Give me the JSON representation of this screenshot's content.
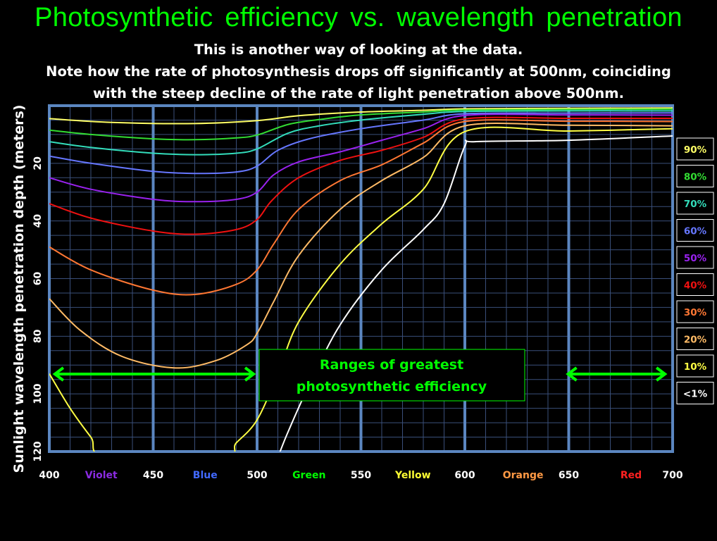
{
  "header": {
    "title": "Photosynthetic efficiency vs. wavelength penetration",
    "subtitle_lines": [
      "This is another way of looking at the data.",
      "Note how the rate of photosynthesis drops off significantly at 500nm, coinciding",
      "with the steep decline of the rate of light penetration above 500nm."
    ]
  },
  "colors": {
    "title": "#00ff00",
    "grid_minor": "#3a4f7a",
    "grid_major": "#5b86c0",
    "arrow": "#00ff00"
  },
  "chart_data": {
    "type": "line",
    "title": "Photosynthetic efficiency vs. wavelength penetration",
    "xlabel": "",
    "ylabel": "Sunlight wavelength penetration depth (meters)",
    "xlim": [
      400,
      700
    ],
    "ylim": [
      120,
      0
    ],
    "y_inverted": true,
    "x_ticks": [
      400,
      450,
      500,
      550,
      600,
      650,
      700
    ],
    "y_ticks": [
      20,
      40,
      60,
      80,
      100,
      120
    ],
    "grid": true,
    "color_bands": [
      {
        "name": "Violet",
        "x": 425,
        "color": "#8a2be2"
      },
      {
        "name": "Blue",
        "x": 475,
        "color": "#4169ff"
      },
      {
        "name": "Green",
        "x": 525,
        "color": "#00ff00"
      },
      {
        "name": "Yellow",
        "x": 575,
        "color": "#ffff33"
      },
      {
        "name": "Orange",
        "x": 628,
        "color": "#ff9944"
      },
      {
        "name": "Red",
        "x": 680,
        "color": "#ff2020"
      }
    ],
    "legend_position": "right",
    "series": [
      {
        "name": "90%",
        "color": "#ffff66",
        "points": [
          [
            400,
            4.5
          ],
          [
            430,
            5.8
          ],
          [
            470,
            6.2
          ],
          [
            500,
            5.2
          ],
          [
            520,
            3.5
          ],
          [
            550,
            2.2
          ],
          [
            580,
            1.6
          ],
          [
            600,
            1.1
          ],
          [
            650,
            0.9
          ],
          [
            700,
            0.8
          ]
        ]
      },
      {
        "name": "80%",
        "color": "#33dd33",
        "points": [
          [
            400,
            8.5
          ],
          [
            420,
            10
          ],
          [
            450,
            11.5
          ],
          [
            470,
            11.8
          ],
          [
            490,
            11.2
          ],
          [
            500,
            10.2
          ],
          [
            515,
            6.5
          ],
          [
            530,
            4.8
          ],
          [
            550,
            3.2
          ],
          [
            580,
            2.2
          ],
          [
            600,
            1.5
          ],
          [
            650,
            1.3
          ],
          [
            700,
            1.2
          ]
        ]
      },
      {
        "name": "70%",
        "color": "#33ddbb",
        "points": [
          [
            400,
            12.5
          ],
          [
            420,
            14.5
          ],
          [
            450,
            16.5
          ],
          [
            470,
            17
          ],
          [
            490,
            16.5
          ],
          [
            500,
            15
          ],
          [
            515,
            9.5
          ],
          [
            530,
            7
          ],
          [
            550,
            5
          ],
          [
            580,
            3
          ],
          [
            600,
            2
          ],
          [
            650,
            1.8
          ],
          [
            700,
            1.8
          ]
        ]
      },
      {
        "name": "60%",
        "color": "#6677ff",
        "points": [
          [
            400,
            17.5
          ],
          [
            420,
            20
          ],
          [
            450,
            22.8
          ],
          [
            470,
            23.5
          ],
          [
            490,
            23
          ],
          [
            500,
            21
          ],
          [
            510,
            15.5
          ],
          [
            525,
            11.5
          ],
          [
            550,
            8
          ],
          [
            580,
            5
          ],
          [
            600,
            2.8
          ],
          [
            650,
            2.6
          ],
          [
            700,
            2.5
          ]
        ]
      },
      {
        "name": "50%",
        "color": "#9922ee",
        "points": [
          [
            400,
            25
          ],
          [
            420,
            29
          ],
          [
            450,
            32.5
          ],
          [
            470,
            33.3
          ],
          [
            490,
            32.5
          ],
          [
            500,
            30
          ],
          [
            508,
            24
          ],
          [
            520,
            19.5
          ],
          [
            540,
            16
          ],
          [
            560,
            12
          ],
          [
            580,
            8
          ],
          [
            600,
            3.4
          ],
          [
            650,
            3.2
          ],
          [
            700,
            3.3
          ]
        ]
      },
      {
        "name": "40%",
        "color": "#ee1111",
        "points": [
          [
            400,
            34
          ],
          [
            420,
            39
          ],
          [
            450,
            43.5
          ],
          [
            470,
            44.6
          ],
          [
            490,
            43
          ],
          [
            500,
            39.5
          ],
          [
            507,
            33
          ],
          [
            520,
            25
          ],
          [
            540,
            19
          ],
          [
            560,
            15.5
          ],
          [
            580,
            11
          ],
          [
            600,
            4.6
          ],
          [
            650,
            4.4
          ],
          [
            700,
            4.4
          ]
        ]
      },
      {
        "name": "30%",
        "color": "#ff7733",
        "points": [
          [
            400,
            49
          ],
          [
            420,
            57
          ],
          [
            450,
            64
          ],
          [
            470,
            65.5
          ],
          [
            490,
            62
          ],
          [
            500,
            57
          ],
          [
            508,
            48
          ],
          [
            520,
            36
          ],
          [
            540,
            26
          ],
          [
            560,
            20.5
          ],
          [
            580,
            13
          ],
          [
            600,
            5.5
          ],
          [
            650,
            5.4
          ],
          [
            700,
            5.5
          ]
        ]
      },
      {
        "name": "20%",
        "color": "#ffbb66",
        "points": [
          [
            400,
            67
          ],
          [
            415,
            78
          ],
          [
            435,
            87
          ],
          [
            460,
            91
          ],
          [
            480,
            88.5
          ],
          [
            495,
            83
          ],
          [
            500,
            79
          ],
          [
            508,
            68
          ],
          [
            520,
            52
          ],
          [
            540,
            36
          ],
          [
            560,
            26
          ],
          [
            580,
            18
          ],
          [
            600,
            7
          ],
          [
            650,
            6.8
          ],
          [
            700,
            7
          ]
        ]
      },
      {
        "name": "10%",
        "color": "#ffff44",
        "points": [
          [
            400,
            93
          ],
          [
            410,
            105
          ],
          [
            420,
            115
          ],
          [
            428,
            122
          ],
          [
            483,
            122
          ],
          [
            490,
            117
          ],
          [
            500,
            109
          ],
          [
            510,
            93
          ],
          [
            520,
            75
          ],
          [
            540,
            55
          ],
          [
            560,
            41
          ],
          [
            580,
            29
          ],
          [
            600,
            9
          ],
          [
            650,
            8.8
          ],
          [
            700,
            8
          ]
        ]
      },
      {
        "name": "<1%",
        "color": "#ffffff",
        "points": [
          [
            510,
            122
          ],
          [
            515,
            113
          ],
          [
            525,
            97
          ],
          [
            540,
            76
          ],
          [
            560,
            57
          ],
          [
            580,
            43
          ],
          [
            590,
            34
          ],
          [
            600,
            14
          ],
          [
            605,
            12.5
          ],
          [
            650,
            12
          ],
          [
            700,
            10.5
          ]
        ]
      }
    ],
    "arrows": [
      [
        402,
        499
      ],
      [
        649,
        697
      ]
    ],
    "annotation": "Ranges of greatest photosynthetic efficiency"
  }
}
